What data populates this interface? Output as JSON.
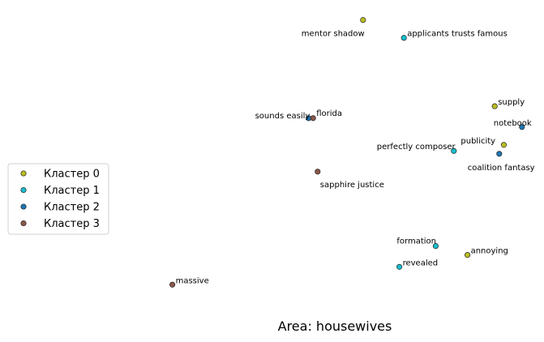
{
  "chart_data": {
    "type": "scatter",
    "title": "",
    "caption": "Area: housewives",
    "axes_visible": false,
    "grid": false,
    "legend_position": "left",
    "series": [
      {
        "name": "Кластер 0",
        "color": "#bcbd22"
      },
      {
        "name": "Кластер 1",
        "color": "#17becf"
      },
      {
        "name": "Кластер 2",
        "color": "#1f77b4"
      },
      {
        "name": "Кластер 3",
        "color": "#8c564b"
      }
    ],
    "points": [
      {
        "label": "mentor shadow",
        "cluster": 0,
        "x": 0.68,
        "y": 0.96
      },
      {
        "label": "applicants trusts famous",
        "cluster": 1,
        "x": 0.77,
        "y": 0.9
      },
      {
        "label": "supply",
        "cluster": 0,
        "x": 0.97,
        "y": 0.67
      },
      {
        "label": "notebook",
        "cluster": 2,
        "x": 1.03,
        "y": 0.6
      },
      {
        "label": "sounds easily",
        "cluster": 2,
        "x": 0.56,
        "y": 0.63
      },
      {
        "label": "florida",
        "cluster": 3,
        "x": 0.57,
        "y": 0.63
      },
      {
        "label": "publicity",
        "cluster": 0,
        "x": 0.99,
        "y": 0.54
      },
      {
        "label": "perfectly composer",
        "cluster": 1,
        "x": 0.88,
        "y": 0.52
      },
      {
        "label": "coalition fantasy",
        "cluster": 2,
        "x": 0.98,
        "y": 0.51
      },
      {
        "label": "sapphire justice",
        "cluster": 3,
        "x": 0.58,
        "y": 0.45
      },
      {
        "label": "formation",
        "cluster": 1,
        "x": 0.84,
        "y": 0.2
      },
      {
        "label": "annoying",
        "cluster": 0,
        "x": 0.91,
        "y": 0.17
      },
      {
        "label": "revealed",
        "cluster": 1,
        "x": 0.76,
        "y": 0.13
      },
      {
        "label": "massive",
        "cluster": 3,
        "x": 0.26,
        "y": 0.07
      }
    ]
  }
}
